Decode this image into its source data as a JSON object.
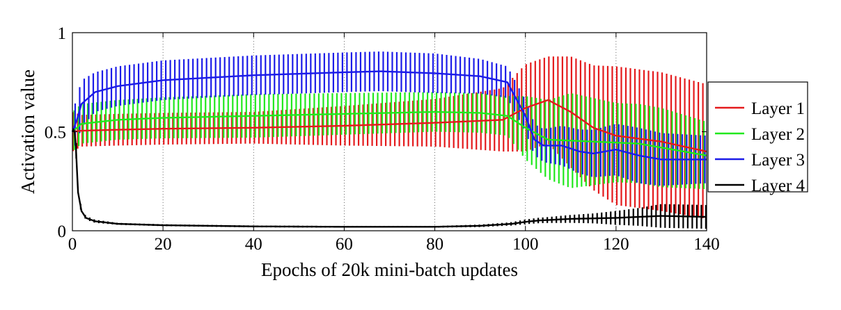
{
  "chart_data": {
    "type": "line",
    "title": "",
    "xlabel": "Epochs of 20k mini-batch updates",
    "ylabel": "Activation value",
    "xlim": [
      0,
      140
    ],
    "ylim": [
      0,
      1
    ],
    "x_ticks": [
      "0",
      "20",
      "40",
      "60",
      "80",
      "100",
      "120",
      "140"
    ],
    "y_ticks": [
      "0",
      "0.5",
      "1"
    ],
    "grid": "vertical dotted at x ticks",
    "legend_position": "right-outside",
    "error_bars": true,
    "series": [
      {
        "name": "Layer 1",
        "color": "#e41a1c",
        "mean": [
          [
            0,
            0.5
          ],
          [
            2,
            0.505
          ],
          [
            10,
            0.51
          ],
          [
            20,
            0.515
          ],
          [
            40,
            0.52
          ],
          [
            60,
            0.53
          ],
          [
            80,
            0.545
          ],
          [
            95,
            0.56
          ],
          [
            100,
            0.62
          ],
          [
            105,
            0.66
          ],
          [
            110,
            0.6
          ],
          [
            115,
            0.52
          ],
          [
            120,
            0.48
          ],
          [
            130,
            0.45
          ],
          [
            140,
            0.4
          ]
        ],
        "band": [
          [
            0,
            0.1
          ],
          [
            2,
            0.08
          ],
          [
            10,
            0.08
          ],
          [
            40,
            0.08
          ],
          [
            80,
            0.12
          ],
          [
            95,
            0.16
          ],
          [
            100,
            0.22
          ],
          [
            105,
            0.22
          ],
          [
            110,
            0.28
          ],
          [
            120,
            0.35
          ],
          [
            130,
            0.35
          ],
          [
            140,
            0.34
          ]
        ]
      },
      {
        "name": "Layer 2",
        "color": "#21e81d",
        "mean": [
          [
            0,
            0.5
          ],
          [
            2,
            0.54
          ],
          [
            10,
            0.56
          ],
          [
            20,
            0.57
          ],
          [
            40,
            0.58
          ],
          [
            60,
            0.59
          ],
          [
            80,
            0.6
          ],
          [
            90,
            0.595
          ],
          [
            96,
            0.58
          ],
          [
            100,
            0.52
          ],
          [
            105,
            0.46
          ],
          [
            115,
            0.45
          ],
          [
            125,
            0.44
          ],
          [
            140,
            0.38
          ]
        ],
        "band": [
          [
            0,
            0.1
          ],
          [
            2,
            0.1
          ],
          [
            10,
            0.1
          ],
          [
            40,
            0.11
          ],
          [
            80,
            0.1
          ],
          [
            96,
            0.1
          ],
          [
            100,
            0.16
          ],
          [
            105,
            0.2
          ],
          [
            110,
            0.24
          ],
          [
            120,
            0.2
          ],
          [
            130,
            0.2
          ],
          [
            140,
            0.17
          ]
        ]
      },
      {
        "name": "Layer 3",
        "color": "#1b1be8",
        "mean": [
          [
            0,
            0.5
          ],
          [
            1,
            0.56
          ],
          [
            2,
            0.64
          ],
          [
            5,
            0.7
          ],
          [
            10,
            0.73
          ],
          [
            20,
            0.76
          ],
          [
            40,
            0.785
          ],
          [
            60,
            0.8
          ],
          [
            68,
            0.805
          ],
          [
            80,
            0.795
          ],
          [
            90,
            0.78
          ],
          [
            96,
            0.75
          ],
          [
            100,
            0.58
          ],
          [
            102,
            0.46
          ],
          [
            104,
            0.43
          ],
          [
            108,
            0.43
          ],
          [
            112,
            0.4
          ],
          [
            115,
            0.39
          ],
          [
            120,
            0.41
          ],
          [
            125,
            0.38
          ],
          [
            130,
            0.36
          ],
          [
            140,
            0.36
          ]
        ],
        "band": [
          [
            0,
            0.1
          ],
          [
            2,
            0.12
          ],
          [
            5,
            0.1
          ],
          [
            10,
            0.1
          ],
          [
            40,
            0.1
          ],
          [
            80,
            0.1
          ],
          [
            96,
            0.08
          ],
          [
            100,
            0.08
          ],
          [
            103,
            0.08
          ],
          [
            108,
            0.1
          ],
          [
            115,
            0.12
          ],
          [
            125,
            0.14
          ],
          [
            140,
            0.12
          ]
        ]
      },
      {
        "name": "Layer 4",
        "color": "#000000",
        "mean": [
          [
            0,
            0.5
          ],
          [
            0.4,
            0.52
          ],
          [
            0.8,
            0.42
          ],
          [
            1.2,
            0.2
          ],
          [
            2,
            0.1
          ],
          [
            3,
            0.065
          ],
          [
            5,
            0.048
          ],
          [
            10,
            0.035
          ],
          [
            20,
            0.028
          ],
          [
            40,
            0.022
          ],
          [
            60,
            0.02
          ],
          [
            80,
            0.02
          ],
          [
            90,
            0.025
          ],
          [
            97,
            0.035
          ],
          [
            100,
            0.045
          ],
          [
            103,
            0.052
          ],
          [
            110,
            0.06
          ],
          [
            120,
            0.065
          ],
          [
            130,
            0.075
          ],
          [
            140,
            0.07
          ]
        ],
        "band": [
          [
            0,
            0.06
          ],
          [
            2,
            0.01
          ],
          [
            10,
            0.005
          ],
          [
            80,
            0.004
          ],
          [
            96,
            0.008
          ],
          [
            100,
            0.012
          ],
          [
            105,
            0.015
          ],
          [
            115,
            0.025
          ],
          [
            125,
            0.045
          ],
          [
            130,
            0.06
          ],
          [
            140,
            0.06
          ]
        ]
      }
    ]
  }
}
